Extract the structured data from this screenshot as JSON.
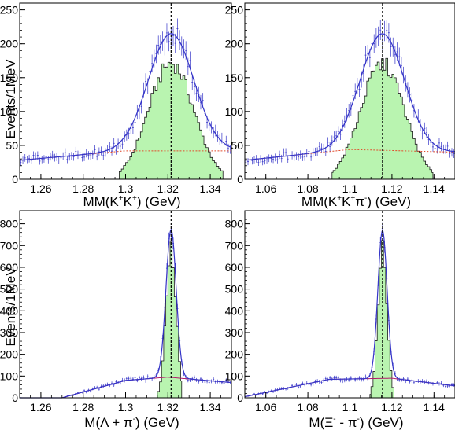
{
  "figure": {
    "ylabel": "Events/1MeV"
  },
  "chart_data": [
    {
      "type": "histogram",
      "panel": "top-left",
      "xlabel_parts": [
        "MM(K",
        "+",
        "K",
        "+",
        ") (GeV)"
      ],
      "xlim": [
        1.25,
        1.35
      ],
      "ylim": [
        0,
        260
      ],
      "xticks": [
        1.26,
        1.28,
        1.3,
        1.32,
        1.34
      ],
      "xtick_labels": [
        "1.26",
        "1.28",
        "1.3",
        "1.32",
        "1.34"
      ],
      "yticks": [
        0,
        50,
        100,
        150,
        200,
        250
      ],
      "ytick_labels": [
        "0",
        "50",
        "100",
        "150",
        "200",
        "250"
      ],
      "peak_line_x": 1.3215,
      "signal_range": [
        1.297,
        1.346
      ],
      "fit": {
        "mean": 1.3215,
        "sigma": 0.0107,
        "amplitude": 173,
        "background": [
          [
            1.25,
            28
          ],
          [
            1.3,
            42
          ],
          [
            1.35,
            42
          ]
        ]
      },
      "colors": {
        "signal_fill": "#b9f4b0",
        "fit_line": "#3535c8",
        "data_points": "#3535c8",
        "background": "#e24a2a"
      }
    },
    {
      "type": "histogram",
      "panel": "top-right",
      "xlabel_parts": [
        "MM(K",
        "+",
        "K",
        "+",
        "π",
        "-",
        ") (GeV)"
      ],
      "xlim": [
        1.05,
        1.15
      ],
      "ylim": [
        0,
        260
      ],
      "xticks": [
        1.06,
        1.08,
        1.1,
        1.12,
        1.14
      ],
      "xtick_labels": [
        "1.06",
        "1.08",
        "1.1",
        "1.12",
        "1.14"
      ],
      "yticks": [
        0,
        50,
        100,
        150,
        200,
        250
      ],
      "ytick_labels": [
        "0",
        "50",
        "100",
        "150",
        "200",
        "250"
      ],
      "peak_line_x": 1.1155,
      "signal_range": [
        1.0915,
        1.1395
      ],
      "fit": {
        "mean": 1.1155,
        "sigma": 0.0105,
        "amplitude": 172,
        "background": [
          [
            1.05,
            28
          ],
          [
            1.1,
            44
          ],
          [
            1.15,
            40
          ]
        ]
      },
      "colors": {
        "signal_fill": "#b9f4b0",
        "fit_line": "#3535c8",
        "data_points": "#3535c8",
        "background": "#e24a2a"
      }
    },
    {
      "type": "histogram",
      "panel": "bottom-left",
      "xlabel_parts": [
        "M(Λ + π",
        "-",
        ") (GeV)"
      ],
      "xlim": [
        1.25,
        1.35
      ],
      "ylim": [
        0,
        860
      ],
      "xticks": [
        1.26,
        1.28,
        1.3,
        1.32,
        1.34
      ],
      "xtick_labels": [
        "1.26",
        "1.28",
        "1.3",
        "1.32",
        "1.34"
      ],
      "yticks": [
        0,
        100,
        200,
        300,
        400,
        500,
        600,
        700,
        800
      ],
      "ytick_labels": [
        "0",
        "100",
        "200",
        "300",
        "400",
        "500",
        "600",
        "700",
        "800"
      ],
      "peak_line_x": 1.3215,
      "signal_range": [
        1.315,
        1.3265
      ],
      "fit": {
        "mean": 1.3215,
        "sigma": 0.0024,
        "amplitude": 680,
        "background": [
          [
            1.27,
            0
          ],
          [
            1.3,
            80
          ],
          [
            1.32,
            95
          ],
          [
            1.35,
            70
          ]
        ]
      },
      "colors": {
        "signal_fill": "#b9f4b0",
        "fit_line": "#3535c8",
        "data_points": "#3535c8",
        "background": "#b21d6a"
      }
    },
    {
      "type": "histogram",
      "panel": "bottom-right",
      "xlabel_parts": [
        "M(Ξ",
        "-",
        " - π",
        "-",
        ") (GeV)"
      ],
      "xlim": [
        1.05,
        1.15
      ],
      "ylim": [
        0,
        860
      ],
      "xticks": [
        1.06,
        1.08,
        1.1,
        1.12,
        1.14
      ],
      "xtick_labels": [
        "1.06",
        "1.08",
        "1.1",
        "1.12",
        "1.14"
      ],
      "yticks": [
        0,
        100,
        200,
        300,
        400,
        500,
        600,
        700,
        800
      ],
      "ytick_labels": [
        "0",
        "100",
        "200",
        "300",
        "400",
        "500",
        "600",
        "700",
        "800"
      ],
      "peak_line_x": 1.1155,
      "signal_range": [
        1.1095,
        1.121
      ],
      "fit": {
        "mean": 1.1155,
        "sigma": 0.0022,
        "amplitude": 680,
        "background": [
          [
            1.05,
            5
          ],
          [
            1.09,
            85
          ],
          [
            1.12,
            90
          ],
          [
            1.15,
            55
          ]
        ]
      },
      "colors": {
        "signal_fill": "#b9f4b0",
        "fit_line": "#3535c8",
        "data_points": "#3535c8",
        "background": "#b21d6a"
      }
    }
  ]
}
